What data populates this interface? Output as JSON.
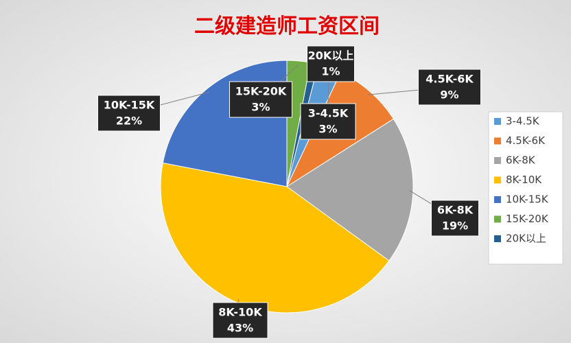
{
  "chart_data": {
    "type": "pie",
    "title": "二级建造师工资区间",
    "categories": [
      "3-4.5K",
      "4.5K-6K",
      "6K-8K",
      "8K-10K",
      "10K-15K",
      "15K-20K",
      "20K以上"
    ],
    "values": [
      3,
      9,
      19,
      43,
      22,
      3,
      1
    ],
    "value_labels": [
      "3%",
      "9%",
      "19%",
      "43%",
      "22%",
      "3%",
      "1%"
    ],
    "colors": [
      "#5b9bd5",
      "#ed7d31",
      "#a5a5a5",
      "#ffc000",
      "#4472c4",
      "#70ad47",
      "#255e91"
    ],
    "legend": "right"
  }
}
